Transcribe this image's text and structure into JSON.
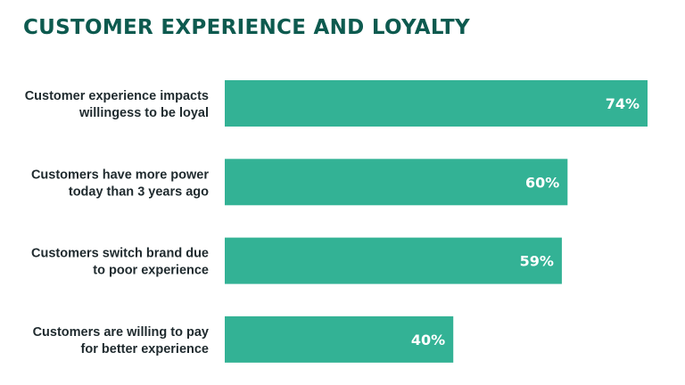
{
  "title": "CUSTOMER EXPERIENCE AND LOYALTY",
  "colors": {
    "title": "#0d5a4f",
    "bar": "#33b295",
    "label": "#1f2a2e",
    "value_label": "#ffffff"
  },
  "chart_data": {
    "type": "bar",
    "orientation": "horizontal",
    "title": "CUSTOMER EXPERIENCE AND LOYALTY",
    "categories": [
      [
        "Customer experience impacts",
        "willingess to be loyal"
      ],
      [
        "Customers have more power",
        "today than 3 years ago"
      ],
      [
        "Customers switch brand due",
        "to poor experience"
      ],
      [
        "Customers are willing to pay",
        "for better experience"
      ]
    ],
    "values": [
      74,
      60,
      59,
      40
    ],
    "value_labels": [
      "74%",
      "60%",
      "59%",
      "40%"
    ],
    "unit": "%",
    "xlim": [
      0,
      100
    ],
    "grid": false,
    "legend": "none"
  }
}
